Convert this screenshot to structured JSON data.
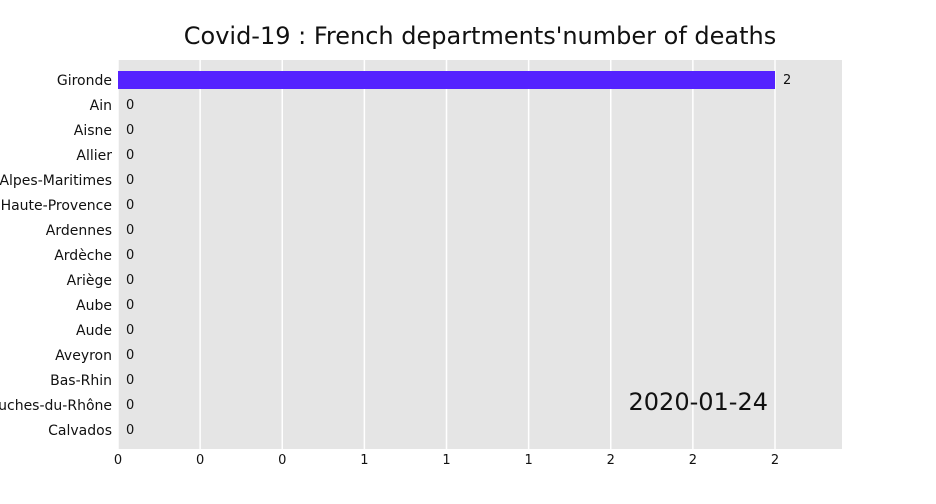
{
  "chart_data": {
    "type": "bar",
    "orientation": "horizontal",
    "title": "Covid-19 : French departments'number of deaths",
    "date_label": "2020-01-24",
    "categories": [
      "Gironde",
      "Ain",
      "Aisne",
      "Allier",
      "Alpes-Maritimes",
      "Alpes-de-Haute-Provence",
      "Ardennes",
      "Ardèche",
      "Ariège",
      "Aube",
      "Aude",
      "Aveyron",
      "Bas-Rhin",
      "Bouches-du-Rhône",
      "Calvados"
    ],
    "values": [
      2,
      0,
      0,
      0,
      0,
      0,
      0,
      0,
      0,
      0,
      0,
      0,
      0,
      0,
      0
    ],
    "value_labels": [
      "2",
      "0",
      "0",
      "0",
      "0",
      "0",
      "0",
      "0",
      "0",
      "0",
      "0",
      "0",
      "0",
      "0",
      "0"
    ],
    "xticks": [
      0,
      0.25,
      0.5,
      0.75,
      1,
      1.25,
      1.5,
      1.75,
      2
    ],
    "xtick_labels": [
      "0",
      "0",
      "0",
      "1",
      "1",
      "1",
      "2",
      "2",
      "2"
    ],
    "xlim": [
      0,
      2.2
    ],
    "xlabel": "",
    "ylabel": "",
    "grid": true,
    "bar_color": "#5522ff",
    "background_color": "#e5e5e5"
  }
}
